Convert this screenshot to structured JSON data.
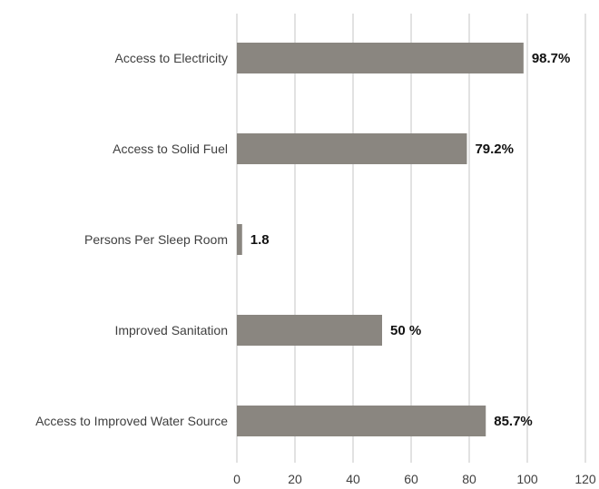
{
  "chart_data": {
    "type": "bar",
    "orientation": "horizontal",
    "categories": [
      "Access to Electricity",
      "Access to Solid Fuel",
      "Persons Per Sleep Room",
      "Improved Sanitation",
      "Access to Improved Water Source"
    ],
    "values": [
      98.7,
      79.2,
      1.8,
      50,
      85.7
    ],
    "data_labels": [
      "98.7%",
      "79.2%",
      "1.8",
      "50 %",
      "85.7%"
    ],
    "xlim": [
      0,
      120
    ],
    "xticks": [
      0,
      20,
      40,
      60,
      80,
      100,
      120
    ],
    "grid": "vertical",
    "legend": "none",
    "colors": {
      "bar": "#8a8680",
      "grid": "#d9d9d9",
      "text": "#3f3f3f",
      "data_label": "#111111"
    }
  }
}
